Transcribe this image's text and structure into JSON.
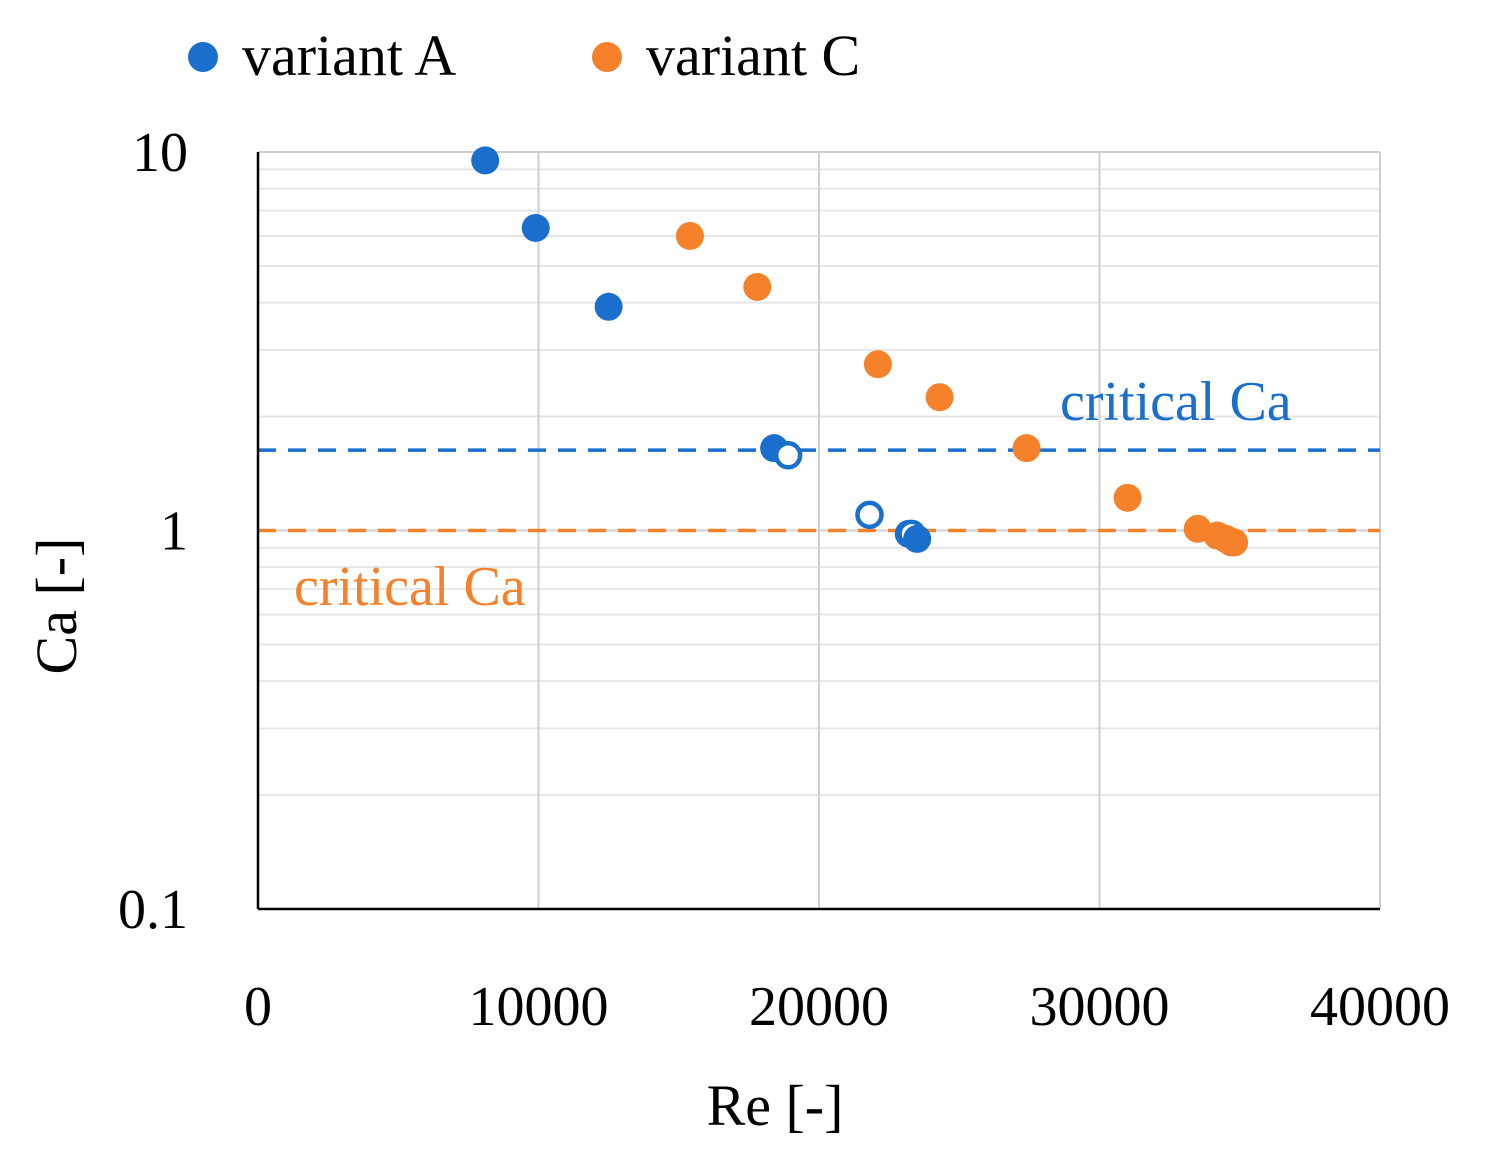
{
  "colors": {
    "variant_a": "#1a6fcd",
    "variant_c": "#f5822a",
    "axis": "#000000",
    "grid_major": "#cfcfcf",
    "grid_minor": "#e6e6e6"
  },
  "chart_data": {
    "type": "scatter",
    "xscale": "linear",
    "yscale": "log",
    "xlim": [
      0,
      40000
    ],
    "ylim": [
      0.1,
      10
    ],
    "xlabel": "Re [-]",
    "ylabel": "Ca [-]",
    "x_ticks": [
      {
        "value": 0,
        "label": "0"
      },
      {
        "value": 10000,
        "label": "10000"
      },
      {
        "value": 20000,
        "label": "20000"
      },
      {
        "value": 30000,
        "label": "30000"
      },
      {
        "value": 40000,
        "label": "40000"
      }
    ],
    "y_ticks": [
      {
        "value": 0.1,
        "label": "0.1"
      },
      {
        "value": 1,
        "label": "1"
      },
      {
        "value": 10,
        "label": "10"
      }
    ],
    "legend": {
      "position": "top",
      "entries": [
        {
          "label": "variant A",
          "series": 0
        },
        {
          "label": "variant C",
          "series": 1
        }
      ]
    },
    "series": [
      {
        "name": "variant A",
        "color": "#1a6fcd",
        "points": [
          {
            "x": 8100,
            "y": 9.5,
            "filled": true
          },
          {
            "x": 9900,
            "y": 6.3,
            "filled": true
          },
          {
            "x": 12500,
            "y": 3.9,
            "filled": true
          },
          {
            "x": 18400,
            "y": 1.65,
            "filled": true
          },
          {
            "x": 18900,
            "y": 1.58,
            "filled": false
          },
          {
            "x": 21800,
            "y": 1.1,
            "filled": false
          },
          {
            "x": 23200,
            "y": 0.98,
            "filled": true
          },
          {
            "x": 23300,
            "y": 0.98,
            "filled": false
          },
          {
            "x": 23500,
            "y": 0.95,
            "filled": true
          }
        ]
      },
      {
        "name": "variant C",
        "color": "#f5822a",
        "points": [
          {
            "x": 15400,
            "y": 6.0,
            "filled": true
          },
          {
            "x": 17800,
            "y": 4.4,
            "filled": true
          },
          {
            "x": 22100,
            "y": 2.75,
            "filled": true
          },
          {
            "x": 24300,
            "y": 2.25,
            "filled": true
          },
          {
            "x": 27400,
            "y": 1.65,
            "filled": true
          },
          {
            "x": 31000,
            "y": 1.22,
            "filled": true
          },
          {
            "x": 33500,
            "y": 1.01,
            "filled": true
          },
          {
            "x": 34200,
            "y": 0.97,
            "filled": true
          },
          {
            "x": 34500,
            "y": 0.95,
            "filled": true
          },
          {
            "x": 34700,
            "y": 0.93,
            "filled": true
          },
          {
            "x": 34800,
            "y": 0.93,
            "filled": true
          }
        ]
      }
    ],
    "reference_lines": [
      {
        "orientation": "horizontal",
        "y": 1.63,
        "style": "dashed",
        "series": 0,
        "label": "critical Ca"
      },
      {
        "orientation": "horizontal",
        "y": 1.0,
        "style": "dashed",
        "series": 1,
        "label": "critical Ca"
      }
    ]
  }
}
